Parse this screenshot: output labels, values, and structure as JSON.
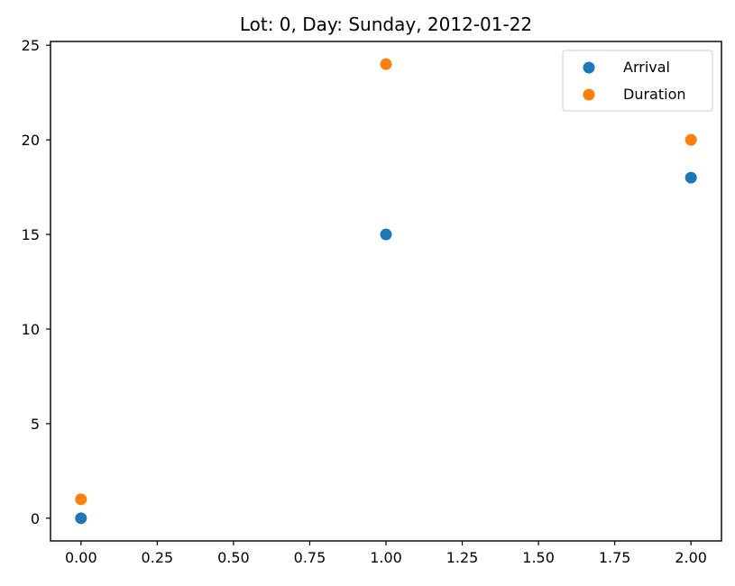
{
  "chart_data": {
    "type": "scatter",
    "title": "Lot: 0, Day: Sunday, 2012-01-22",
    "xlabel": "",
    "ylabel": "",
    "xlim": [
      -0.1,
      2.1
    ],
    "ylim": [
      -1.2,
      25.2
    ],
    "x_ticks": [
      0,
      0.25,
      0.5,
      0.75,
      1.0,
      1.25,
      1.5,
      1.75,
      2.0
    ],
    "x_tick_labels": [
      "0.00",
      "0.25",
      "0.50",
      "0.75",
      "1.00",
      "1.25",
      "1.50",
      "1.75",
      "2.00"
    ],
    "y_ticks": [
      0,
      5,
      10,
      15,
      20,
      25
    ],
    "y_tick_labels": [
      "0",
      "5",
      "10",
      "15",
      "20",
      "25"
    ],
    "grid": false,
    "legend_position": "top-right",
    "series": [
      {
        "name": "Arrival",
        "color": "#1f77b4",
        "points": [
          {
            "x": 0,
            "y": 0
          },
          {
            "x": 1,
            "y": 15
          },
          {
            "x": 2,
            "y": 18
          }
        ]
      },
      {
        "name": "Duration",
        "color": "#ff7f0e",
        "points": [
          {
            "x": 0,
            "y": 1
          },
          {
            "x": 1,
            "y": 24
          },
          {
            "x": 2,
            "y": 20
          }
        ]
      }
    ]
  }
}
